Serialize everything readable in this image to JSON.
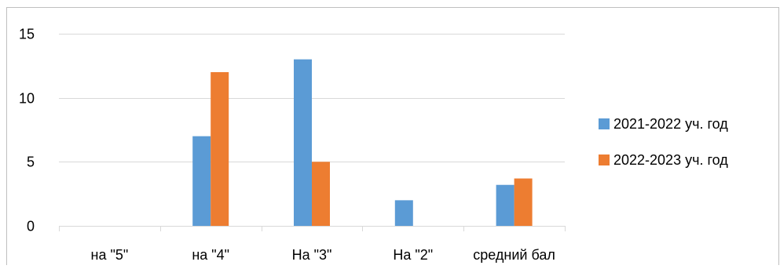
{
  "chart_data": {
    "type": "bar",
    "categories": [
      "на \"5\"",
      "на \"4\"",
      "На \"3\"",
      "На \"2\"",
      "средний бал"
    ],
    "series": [
      {
        "name": "2021-2022 уч. год",
        "values": [
          0,
          7,
          13,
          2,
          3.2
        ],
        "color": "#5B9BD5"
      },
      {
        "name": "2022-2023 уч. год",
        "values": [
          0,
          12,
          5,
          0,
          3.7
        ],
        "color": "#ED7D31"
      }
    ],
    "y_ticks": [
      "0",
      "5",
      "10",
      "15"
    ],
    "ylim": [
      0,
      15
    ],
    "grid": true,
    "legend_position": "right"
  }
}
